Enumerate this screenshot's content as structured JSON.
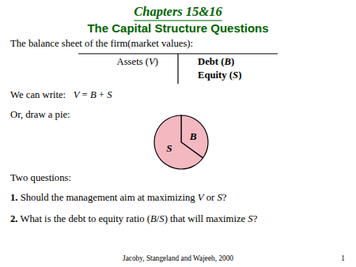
{
  "chart_data": {
    "type": "pie",
    "title": "Chapters 15&16",
    "subtitle": "The Capital Structure Questions",
    "categories": [
      "B",
      "S"
    ],
    "values": [
      0.35,
      0.65
    ],
    "colors": [
      "#f4b8c1",
      "#f4b8c1"
    ],
    "annotations": [
      "The balance sheet of the firm(market values):",
      "Assets (V)",
      "Debt (B)",
      "Equity (S)",
      "We can write:   V = B + S",
      "Or, draw a pie:",
      "Two questions:",
      "1. Should the management aim at maximizing V or S?",
      "2. What is the debt to equity ratio (B/S) that will maximize S?",
      "Jacoby, Stangeland and Wajeeh, 2000",
      "1"
    ]
  }
}
